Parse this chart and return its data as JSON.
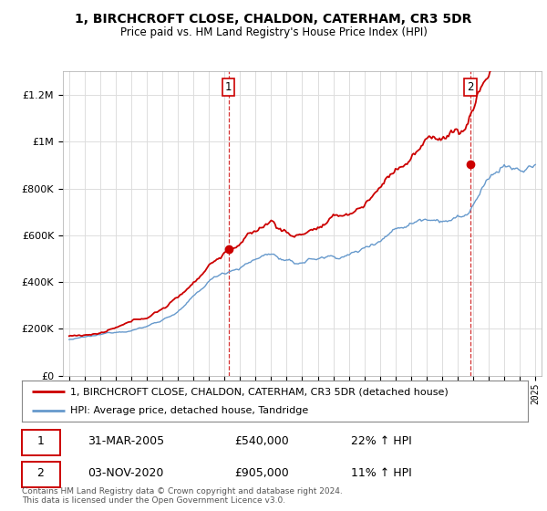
{
  "title_line1": "1, BIRCHCROFT CLOSE, CHALDON, CATERHAM, CR3 5DR",
  "title_line2": "Price paid vs. HM Land Registry's House Price Index (HPI)",
  "legend_line1": "1, BIRCHCROFT CLOSE, CHALDON, CATERHAM, CR3 5DR (detached house)",
  "legend_line2": "HPI: Average price, detached house, Tandridge",
  "footnote": "Contains HM Land Registry data © Crown copyright and database right 2024.\nThis data is licensed under the Open Government Licence v3.0.",
  "transaction1_date": "31-MAR-2005",
  "transaction1_price": "£540,000",
  "transaction1_hpi": "22% ↑ HPI",
  "transaction1_year": 2005.25,
  "transaction1_value": 540000,
  "transaction2_date": "03-NOV-2020",
  "transaction2_price": "£905,000",
  "transaction2_hpi": "11% ↑ HPI",
  "transaction2_year": 2020.83,
  "transaction2_value": 905000,
  "hpi_color": "#6699cc",
  "price_color": "#cc0000",
  "marker_color": "#cc0000",
  "vline_color": "#cc0000",
  "background_color": "#ffffff",
  "grid_color": "#dddddd",
  "ylim_min": 0,
  "ylim_max": 1300000
}
